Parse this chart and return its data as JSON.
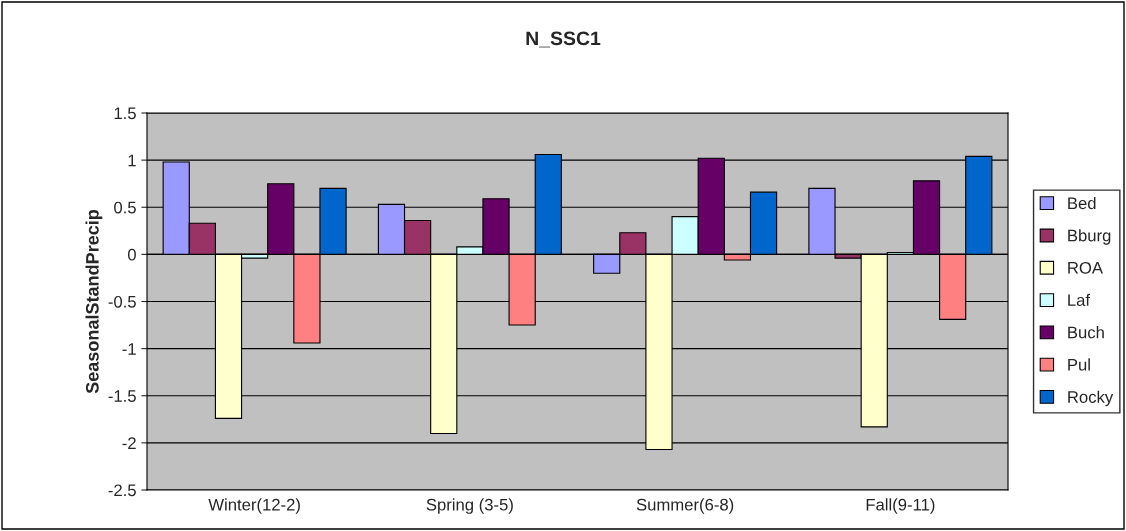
{
  "chart_data": {
    "type": "bar",
    "title": "N_SSC1",
    "ylabel": "SeasonalStandPrecip",
    "categories": [
      "Winter(12-2)",
      "Spring (3-5)",
      "Summer(6-8)",
      "Fall(9-11)"
    ],
    "series": [
      {
        "name": "Bed",
        "color": "#9999ff",
        "values": [
          0.98,
          0.53,
          -0.2,
          0.7
        ]
      },
      {
        "name": "Bburg",
        "color": "#993366",
        "values": [
          0.33,
          0.36,
          0.23,
          -0.04
        ]
      },
      {
        "name": "ROA",
        "color": "#ffffcc",
        "values": [
          -1.74,
          -1.9,
          -2.07,
          -1.83
        ]
      },
      {
        "name": "Laf",
        "color": "#ccffff",
        "values": [
          -0.04,
          0.08,
          0.4,
          0.02
        ]
      },
      {
        "name": "Buch",
        "color": "#660066",
        "values": [
          0.75,
          0.59,
          1.02,
          0.78
        ]
      },
      {
        "name": "Pul",
        "color": "#ff8080",
        "values": [
          -0.94,
          -0.75,
          -0.06,
          -0.69
        ]
      },
      {
        "name": "Rocky",
        "color": "#0066cc",
        "values": [
          0.7,
          1.06,
          0.66,
          1.04
        ]
      }
    ],
    "ylim": [
      -2.5,
      1.5
    ],
    "yticks": [
      {
        "value": -2.5,
        "label": "-2.5"
      },
      {
        "value": -2,
        "label": "-2"
      },
      {
        "value": -1.5,
        "label": "-1.5"
      },
      {
        "value": -1,
        "label": "-1"
      },
      {
        "value": -0.5,
        "label": "-0.5"
      },
      0,
      0.5,
      1,
      1.5
    ],
    "grid": "y",
    "legend": "right"
  }
}
